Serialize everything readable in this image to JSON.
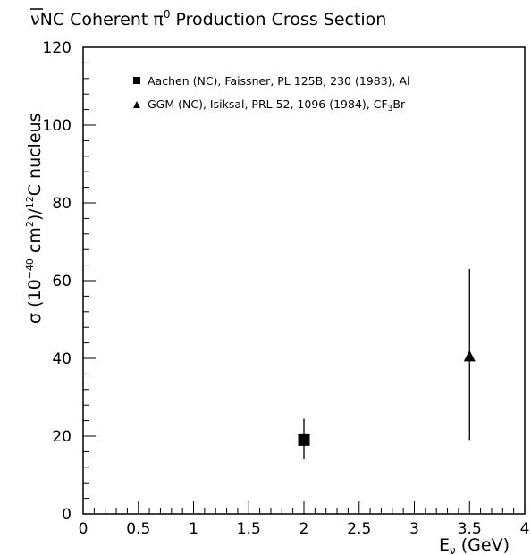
{
  "chart_data": {
    "type": "scatter",
    "title_prefix": "ν",
    "title_main": "NC Coherent π",
    "title_sup": "0",
    "title_suffix": " Production Cross Section",
    "xlabel_main": "E",
    "xlabel_sub": "ν",
    "xlabel_unit": " (GeV)",
    "ylabel_part1": "σ (10",
    "ylabel_exp1": "−40",
    "ylabel_part2": " cm",
    "ylabel_exp2": "2",
    "ylabel_part3": ")/",
    "ylabel_exp3": "12",
    "ylabel_part4": "C  nucleus",
    "xlim": [
      0,
      4
    ],
    "ylim": [
      0,
      120
    ],
    "x_ticks": [
      {
        "value": 0,
        "label": "0"
      },
      {
        "value": 0.5,
        "label": "0.5"
      },
      {
        "value": 1,
        "label": "1"
      },
      {
        "value": 1.5,
        "label": "1.5"
      },
      {
        "value": 2,
        "label": "2"
      },
      {
        "value": 2.5,
        "label": "2.5"
      },
      {
        "value": 3,
        "label": "3"
      },
      {
        "value": 3.5,
        "label": "3.5"
      },
      {
        "value": 4,
        "label": "4"
      }
    ],
    "y_ticks": [
      {
        "value": 0,
        "label": "0"
      },
      {
        "value": 20,
        "label": "20"
      },
      {
        "value": 40,
        "label": "40"
      },
      {
        "value": 60,
        "label": "60"
      },
      {
        "value": 80,
        "label": "80"
      },
      {
        "value": 100,
        "label": "100"
      },
      {
        "value": 120,
        "label": "120"
      }
    ],
    "grid": false,
    "legend_position": "top-right",
    "series": [
      {
        "name": "Aachen (NC), Faissner, PL 125B, 230 (1983), Al",
        "marker": "square",
        "color": "#000000",
        "points": [
          {
            "x": 2.0,
            "y": 19,
            "y_err_low": 14,
            "y_err_high": 24.5
          }
        ]
      },
      {
        "name_main": "GGM (NC), Isiksal, PRL 52, 1096 (1984), CF",
        "name_sub": "3",
        "name_tail": "Br",
        "marker": "triangle",
        "color": "#000000",
        "points": [
          {
            "x": 3.5,
            "y": 40.5,
            "y_err_low": 19,
            "y_err_high": 63
          }
        ]
      }
    ]
  }
}
